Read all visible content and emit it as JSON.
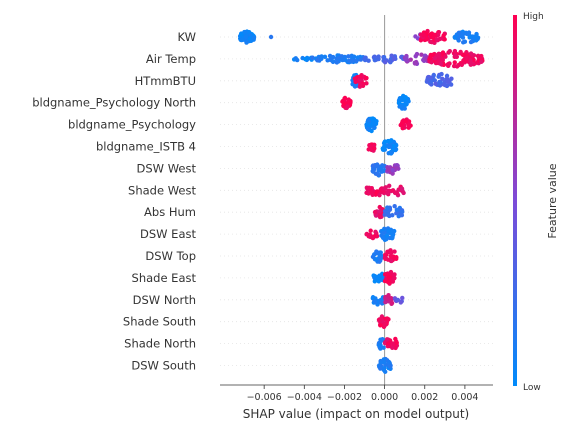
{
  "chart_data": {
    "type": "scatter",
    "subtype": "shap-beeswarm",
    "xlabel": "SHAP value (impact on model output)",
    "xlim": [
      -0.0082,
      0.0054
    ],
    "x_ticks": [
      -0.006,
      -0.004,
      -0.002,
      0.0,
      0.002,
      0.004
    ],
    "x_tick_labels": [
      "−0.006",
      "−0.004",
      "−0.002",
      "0.000",
      "0.002",
      "0.004"
    ],
    "colorbar": {
      "label": "Feature value",
      "high_label": "High",
      "low_label": "Low",
      "low_color": "#008bfb",
      "high_color": "#ff0051"
    },
    "features": [
      {
        "name": "KW",
        "clusters": [
          {
            "x": [
              -0.0072,
              -0.0065
            ],
            "n": 60,
            "spread": 6,
            "fv": 0.05
          },
          {
            "x": [
              -0.0057,
              -0.0056
            ],
            "n": 1,
            "spread": 0,
            "fv": 0.1
          },
          {
            "x": [
              0.0015,
              0.0022
            ],
            "n": 12,
            "spread": 4,
            "fv": 0.55
          },
          {
            "x": [
              0.0035,
              0.0047
            ],
            "n": 40,
            "spread": 6,
            "fv": 0.1
          },
          {
            "x": [
              0.0018,
              0.003
            ],
            "n": 50,
            "spread": 7,
            "fv": 0.97
          }
        ]
      },
      {
        "name": "Air Temp",
        "clusters": [
          {
            "x": [
              -0.0047,
              -0.0036
            ],
            "n": 12,
            "spread": 2,
            "fv": 0.05
          },
          {
            "x": [
              -0.0036,
              -0.001
            ],
            "n": 60,
            "spread": 4,
            "fv": 0.12
          },
          {
            "x": [
              -0.001,
              0.001
            ],
            "n": 30,
            "spread": 4,
            "fv": 0.3
          },
          {
            "x": [
              0.001,
              0.0022
            ],
            "n": 25,
            "spread": 5,
            "fv": 0.6
          },
          {
            "x": [
              0.0022,
              0.0049
            ],
            "n": 110,
            "spread": 8,
            "fv": 0.95
          }
        ]
      },
      {
        "name": "HTmmBTU",
        "clusters": [
          {
            "x": [
              -0.0016,
              -0.0013
            ],
            "n": 25,
            "spread": 7,
            "fv": 0.1
          },
          {
            "x": [
              -0.0015,
              -0.0009
            ],
            "n": 30,
            "spread": 6,
            "fv": 0.95
          },
          {
            "x": [
              0.0021,
              0.0034
            ],
            "n": 45,
            "spread": 7,
            "fv": 0.3
          }
        ]
      },
      {
        "name": "bldgname_Psychology North",
        "clusters": [
          {
            "x": [
              -0.0021,
              -0.0017
            ],
            "n": 25,
            "spread": 6,
            "fv": 0.97
          },
          {
            "x": [
              0.0007,
              0.0012
            ],
            "n": 35,
            "spread": 7,
            "fv": 0.05
          }
        ]
      },
      {
        "name": "bldgname_Psychology",
        "clusters": [
          {
            "x": [
              -0.0009,
              -0.0004
            ],
            "n": 35,
            "spread": 7,
            "fv": 0.05
          },
          {
            "x": [
              0.0008,
              0.0013
            ],
            "n": 20,
            "spread": 5,
            "fv": 0.97
          }
        ]
      },
      {
        "name": "bldgname_ISTB 4",
        "clusters": [
          {
            "x": [
              -0.0008,
              -0.0005
            ],
            "n": 15,
            "spread": 6,
            "fv": 0.97
          },
          {
            "x": [
              -0.0001,
              0.0006
            ],
            "n": 35,
            "spread": 7,
            "fv": 0.05
          }
        ]
      },
      {
        "name": "DSW West",
        "clusters": [
          {
            "x": [
              -0.0006,
              0.0
            ],
            "n": 25,
            "spread": 7,
            "fv": 0.15
          },
          {
            "x": [
              0.0001,
              0.0007
            ],
            "n": 20,
            "spread": 6,
            "fv": 0.6
          }
        ]
      },
      {
        "name": "Shade West",
        "clusters": [
          {
            "x": [
              -0.0009,
              0.0
            ],
            "n": 30,
            "spread": 6,
            "fv": 0.95
          },
          {
            "x": [
              0.0,
              0.001
            ],
            "n": 20,
            "spread": 6,
            "fv": 0.9
          }
        ]
      },
      {
        "name": "Abs Hum",
        "clusters": [
          {
            "x": [
              -0.0005,
              0.0
            ],
            "n": 20,
            "spread": 6,
            "fv": 0.9
          },
          {
            "x": [
              0.0,
              0.0009
            ],
            "n": 30,
            "spread": 7,
            "fv": 0.2
          }
        ]
      },
      {
        "name": "DSW East",
        "clusters": [
          {
            "x": [
              -0.0009,
              -0.0003
            ],
            "n": 15,
            "spread": 4,
            "fv": 0.95
          },
          {
            "x": [
              -0.0002,
              0.0005
            ],
            "n": 30,
            "spread": 7,
            "fv": 0.1
          }
        ]
      },
      {
        "name": "DSW Top",
        "clusters": [
          {
            "x": [
              -0.0006,
              0.0
            ],
            "n": 20,
            "spread": 6,
            "fv": 0.1
          },
          {
            "x": [
              0.0,
              0.0006
            ],
            "n": 25,
            "spread": 7,
            "fv": 0.95
          }
        ]
      },
      {
        "name": "Shade East",
        "clusters": [
          {
            "x": [
              -0.0006,
              0.0
            ],
            "n": 20,
            "spread": 6,
            "fv": 0.05
          },
          {
            "x": [
              0.0,
              0.0005
            ],
            "n": 25,
            "spread": 7,
            "fv": 0.97
          }
        ]
      },
      {
        "name": "DSW North",
        "clusters": [
          {
            "x": [
              -0.0006,
              0.0
            ],
            "n": 20,
            "spread": 5,
            "fv": 0.1
          },
          {
            "x": [
              0.0,
              0.0005
            ],
            "n": 15,
            "spread": 5,
            "fv": 0.8
          },
          {
            "x": [
              0.0005,
              0.001
            ],
            "n": 8,
            "spread": 3,
            "fv": 0.4
          }
        ]
      },
      {
        "name": "Shade South",
        "clusters": [
          {
            "x": [
              -0.0003,
              0.0002
            ],
            "n": 25,
            "spread": 6,
            "fv": 0.95
          }
        ]
      },
      {
        "name": "Shade North",
        "clusters": [
          {
            "x": [
              -0.0003,
              0.0
            ],
            "n": 15,
            "spread": 6,
            "fv": 0.1
          },
          {
            "x": [
              0.0,
              0.0007
            ],
            "n": 20,
            "spread": 6,
            "fv": 0.95
          }
        ]
      },
      {
        "name": "DSW South",
        "clusters": [
          {
            "x": [
              -0.0003,
              0.0003
            ],
            "n": 30,
            "spread": 7,
            "fv": 0.1
          }
        ]
      }
    ]
  }
}
